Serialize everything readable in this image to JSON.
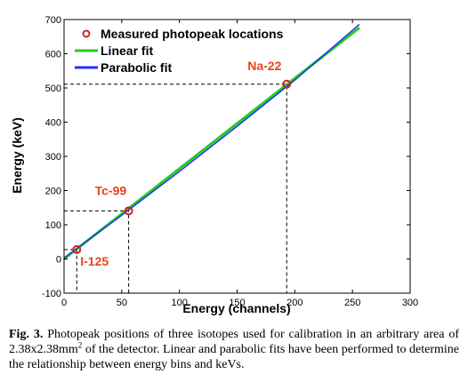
{
  "chart_data": {
    "type": "line",
    "xlabel": "Energy (channels)",
    "ylabel": "Energy (keV)",
    "xlim": [
      0,
      300
    ],
    "ylim": [
      -100,
      700
    ],
    "xticks": [
      0,
      50,
      100,
      150,
      200,
      250,
      300
    ],
    "yticks": [
      -100,
      0,
      100,
      200,
      300,
      400,
      500,
      600,
      700
    ],
    "grid": false,
    "legend_position": "top-left",
    "series": [
      {
        "name": "Measured photopeak locations",
        "kind": "scatter",
        "color": "#d42020",
        "points": [
          {
            "x": 11,
            "y": 27.5
          },
          {
            "x": 56,
            "y": 140.5
          },
          {
            "x": 193,
            "y": 511
          }
        ]
      },
      {
        "name": "Linear fit",
        "kind": "line",
        "color": "#22cc22",
        "x": [
          0,
          256
        ],
        "y": [
          0,
          676
        ]
      },
      {
        "name": "Parabolic fit",
        "kind": "line",
        "color": "#2233ee",
        "x": [
          0,
          50,
          100,
          150,
          200,
          256
        ],
        "y": [
          3,
          128,
          256,
          388,
          523,
          686
        ]
      }
    ],
    "annotations": [
      {
        "text": "I-125",
        "x": 11,
        "y": 27.5
      },
      {
        "text": "Tc-99",
        "x": 56,
        "y": 140.5
      },
      {
        "text": "Na-22",
        "x": 193,
        "y": 511
      }
    ],
    "annotation_color": "#e8431f"
  },
  "caption": {
    "label": "Fig. 3.",
    "text_before_sup": " Photopeak positions of three isotopes used for calibration in an arbitrary area of 2.38x2.38mm",
    "sup": "2",
    "text_after_sup": " of the detector. Linear and parabolic fits have been performed to determine the relationship between energy bins and keVs."
  }
}
